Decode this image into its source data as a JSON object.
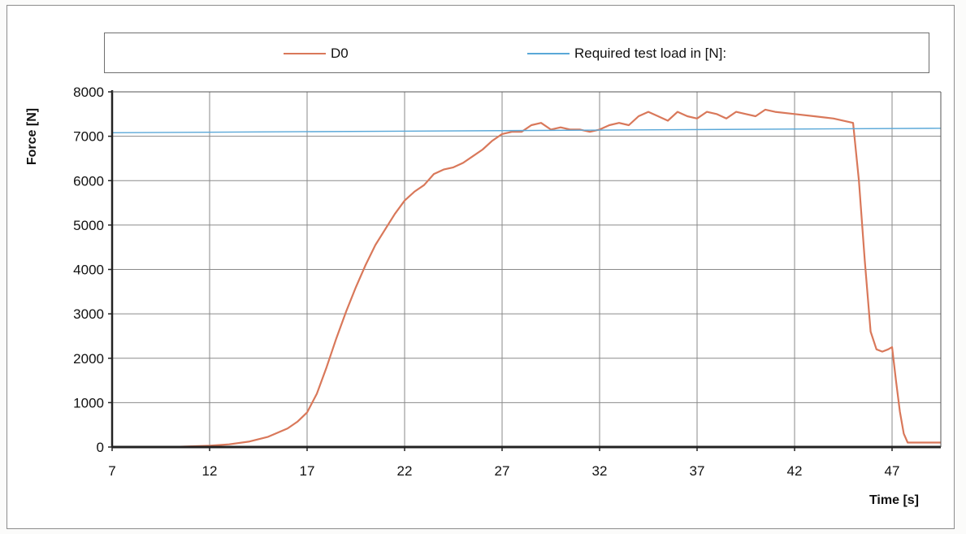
{
  "chart_data": {
    "type": "line",
    "xlabel": "Time [s]",
    "ylabel": "Force [N]",
    "xlim": [
      7,
      49.5
    ],
    "ylim": [
      0,
      8000
    ],
    "x_ticks": [
      "7",
      "12",
      "17",
      "22",
      "27",
      "32",
      "37",
      "42",
      "47"
    ],
    "y_ticks": [
      "0",
      "1000",
      "2000",
      "3000",
      "4000",
      "5000",
      "6000",
      "7000",
      "8000"
    ],
    "grid": true,
    "legend_position": "top",
    "legend": [
      "D0",
      "Required test load in [N]:"
    ],
    "series": [
      {
        "name": "D0",
        "color": "#d9785a",
        "x": [
          7,
          10,
          12,
          13,
          14,
          15,
          16,
          16.5,
          17,
          17.5,
          18,
          18.5,
          19,
          19.5,
          20,
          20.5,
          21,
          21.5,
          22,
          22.5,
          23,
          23.5,
          24,
          24.5,
          25,
          25.5,
          26,
          26.5,
          27,
          27.5,
          28,
          28.5,
          29,
          29.5,
          30,
          30.5,
          31,
          31.5,
          32,
          32.5,
          33,
          33.5,
          34,
          34.5,
          35,
          35.5,
          36,
          36.5,
          37,
          37.5,
          38,
          38.5,
          39,
          39.5,
          40,
          40.5,
          41,
          42,
          43,
          44,
          45,
          45.3,
          45.6,
          45.9,
          46.2,
          46.5,
          46.8,
          47.0,
          47.2,
          47.4,
          47.6,
          47.8,
          48.1,
          48.5,
          49.5
        ],
        "values": [
          0,
          0,
          30,
          60,
          120,
          230,
          420,
          570,
          780,
          1200,
          1800,
          2450,
          3050,
          3600,
          4100,
          4550,
          4900,
          5250,
          5550,
          5750,
          5900,
          6150,
          6250,
          6300,
          6400,
          6550,
          6700,
          6900,
          7050,
          7100,
          7100,
          7250,
          7300,
          7150,
          7200,
          7150,
          7150,
          7100,
          7150,
          7250,
          7300,
          7250,
          7450,
          7550,
          7450,
          7350,
          7550,
          7450,
          7400,
          7550,
          7500,
          7400,
          7550,
          7500,
          7450,
          7600,
          7550,
          7500,
          7450,
          7400,
          7300,
          6000,
          4200,
          2600,
          2200,
          2150,
          2200,
          2250,
          1500,
          800,
          300,
          100,
          100,
          100,
          100
        ]
      },
      {
        "name": "Required test load in [N]:",
        "color": "#5aa8d8",
        "x": [
          7,
          49.5
        ],
        "values": [
          7080,
          7180
        ]
      }
    ]
  }
}
